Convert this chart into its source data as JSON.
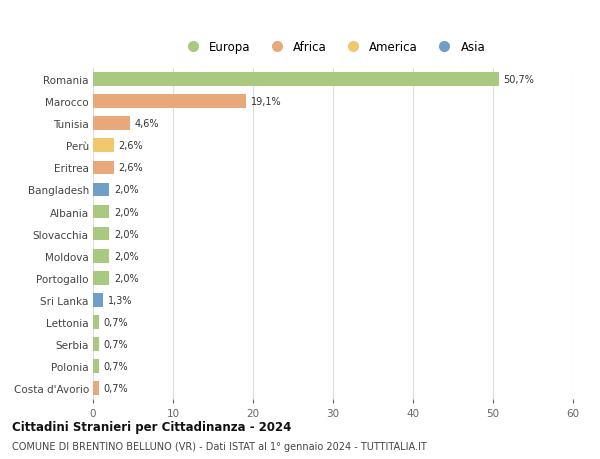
{
  "countries": [
    "Romania",
    "Marocco",
    "Tunisia",
    "Perù",
    "Eritrea",
    "Bangladesh",
    "Albania",
    "Slovacchia",
    "Moldova",
    "Portogallo",
    "Sri Lanka",
    "Lettonia",
    "Serbia",
    "Polonia",
    "Costa d'Avorio"
  ],
  "values": [
    50.7,
    19.1,
    4.6,
    2.6,
    2.6,
    2.0,
    2.0,
    2.0,
    2.0,
    2.0,
    1.3,
    0.7,
    0.7,
    0.7,
    0.7
  ],
  "labels": [
    "50,7%",
    "19,1%",
    "4,6%",
    "2,6%",
    "2,6%",
    "2,0%",
    "2,0%",
    "2,0%",
    "2,0%",
    "2,0%",
    "1,3%",
    "0,7%",
    "0,7%",
    "0,7%",
    "0,7%"
  ],
  "colors": [
    "#a8c97f",
    "#e8a87c",
    "#e8a87c",
    "#f0c96e",
    "#e8a87c",
    "#6f9fc8",
    "#a8c97f",
    "#a8c97f",
    "#a8c97f",
    "#a8c97f",
    "#6f9fc8",
    "#a8c97f",
    "#a8c97f",
    "#a8c97f",
    "#e8a87c"
  ],
  "legend_labels": [
    "Europa",
    "Africa",
    "America",
    "Asia"
  ],
  "legend_colors": [
    "#a8c97f",
    "#e8a87c",
    "#f0c96e",
    "#6f9fc8"
  ],
  "title": "Cittadini Stranieri per Cittadinanza - 2024",
  "subtitle": "COMUNE DI BRENTINO BELLUNO (VR) - Dati ISTAT al 1° gennaio 2024 - TUTTITALIA.IT",
  "xlim": [
    0,
    60
  ],
  "xticks": [
    0,
    10,
    20,
    30,
    40,
    50,
    60
  ],
  "bg_color": "#ffffff",
  "grid_color": "#dddddd",
  "bar_height": 0.62
}
